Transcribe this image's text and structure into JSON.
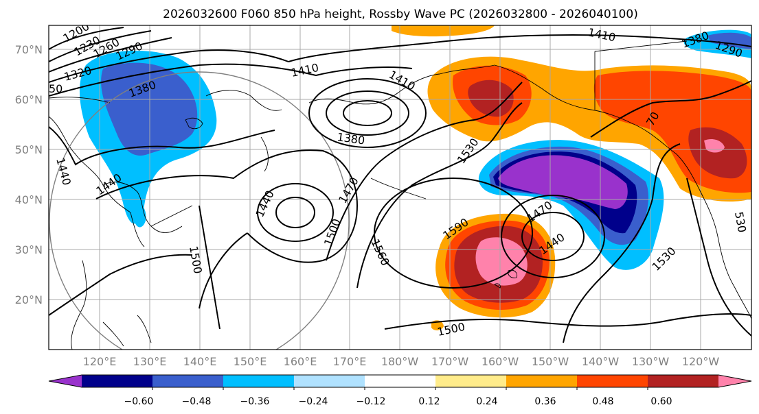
{
  "title": "2026032600 F060 850 hPa height, Rossby Wave PC (2026032800 - 2026040100)",
  "lat_labels": [
    "70°N",
    "60°N",
    "50°N",
    "40°N",
    "30°N",
    "20°N"
  ],
  "lon_labels": [
    "120°E",
    "130°E",
    "140°E",
    "150°E",
    "160°E",
    "170°E",
    "180°W",
    "170°W",
    "160°W",
    "150°W",
    "140°W",
    "130°W",
    "120°W"
  ],
  "colorbar": {
    "colors": [
      "#9932cc",
      "#00008b",
      "#3a5fcd",
      "#00bfff",
      "#b0e2ff",
      "#ffffff",
      "#ffec8b",
      "#ffa500",
      "#ff4500",
      "#b22222",
      "#ff82ab"
    ],
    "extend": "both",
    "tick_labels": [
      "−0.60",
      "−0.48",
      "−0.36",
      "−0.24",
      "−0.12",
      "0.12",
      "0.24",
      "0.36",
      "0.48",
      "0.60"
    ]
  },
  "contour_labels": [
    "1200",
    "1230",
    "1260",
    "1290",
    "50",
    "1320",
    "1380",
    "1410",
    "1410",
    "1410",
    "1380",
    "1440",
    "1440",
    "1440",
    "1470",
    "1500",
    "1500",
    "1530",
    "1530",
    "1560",
    "1590",
    "1470",
    "1440",
    "1500",
    "1530",
    "1380",
    "1290",
    "70",
    "530"
  ],
  "icons": [
    "circle-outline"
  ]
}
